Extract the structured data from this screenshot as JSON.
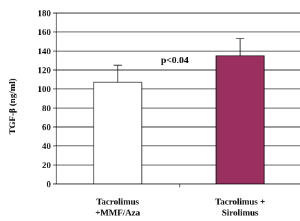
{
  "chart_data": {
    "type": "bar",
    "title": "",
    "ylabel": "TGF-β (ng/ml)",
    "xlabel": "",
    "categories": [
      [
        "Tacrolimus",
        "+MMF/Aza"
      ],
      [
        "Tacrolimus +",
        "Sirolimus"
      ]
    ],
    "values": [
      107,
      135
    ],
    "error_bars": [
      18,
      18
    ],
    "bar_colors": [
      "#ffffff",
      "#9b3060"
    ],
    "ylim": [
      0,
      180
    ],
    "yticks": [
      0,
      20,
      40,
      60,
      80,
      100,
      120,
      140,
      160,
      180
    ],
    "grid": true,
    "annotation": "p<0.04"
  }
}
